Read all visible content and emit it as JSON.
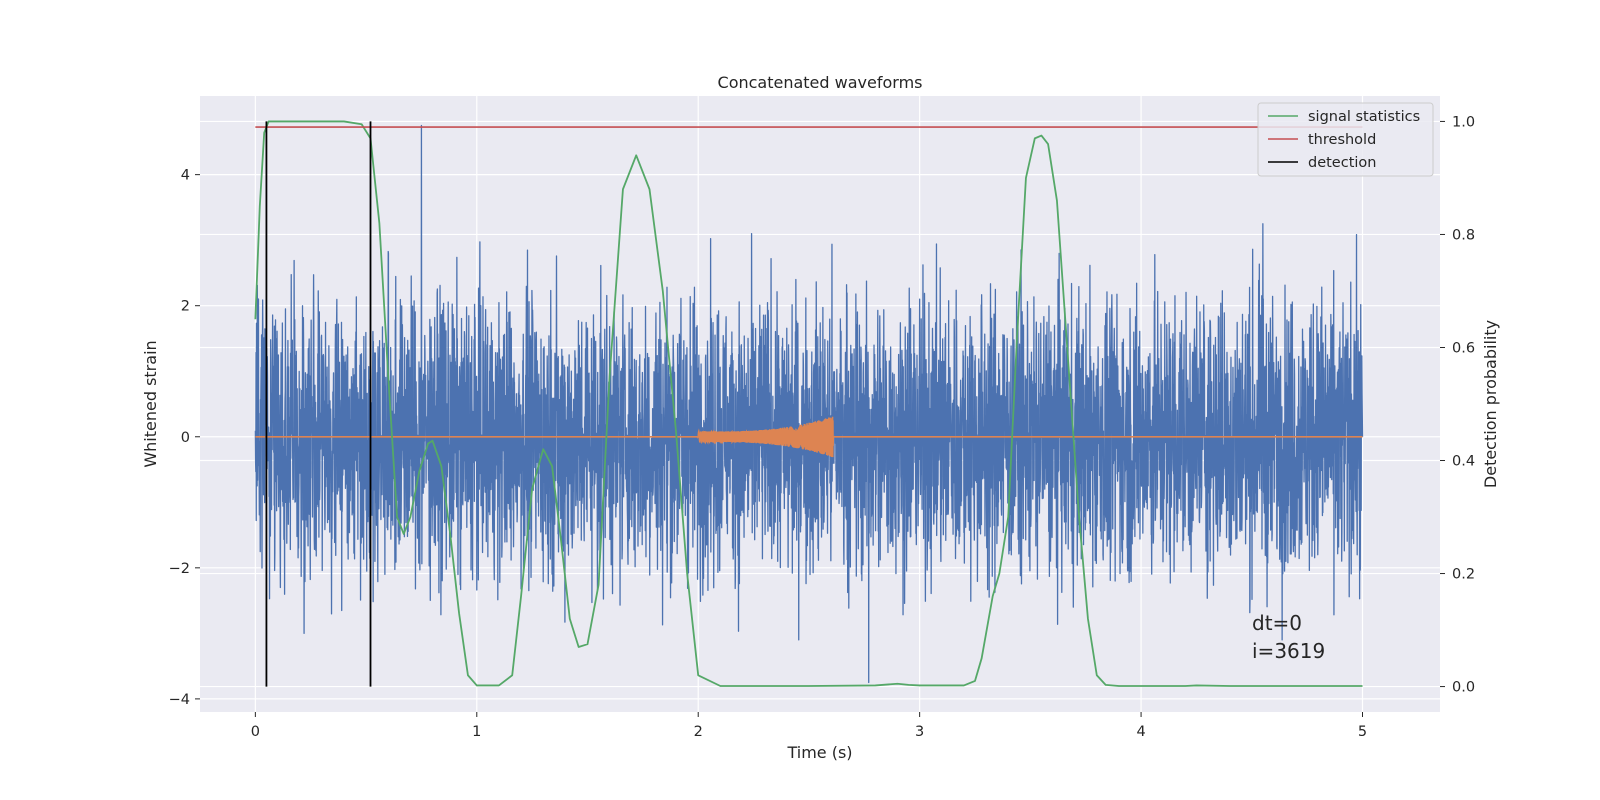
{
  "chart_data": {
    "type": "line",
    "title": "Concatenated waveforms",
    "xlabel": "Time (s)",
    "ylabel_left": "Whitened strain",
    "ylabel_right": "Detection probability",
    "xlim": [
      -0.25,
      5.35
    ],
    "ylim_left": [
      -4.2,
      5.2
    ],
    "ylim_right": [
      -0.045,
      1.045
    ],
    "x_ticks": [
      0,
      1,
      2,
      3,
      4,
      5
    ],
    "y_ticks_left": [
      -4,
      -2,
      0,
      2,
      4
    ],
    "y_ticks_right": [
      0.0,
      0.2,
      0.4,
      0.6,
      0.8,
      1.0
    ],
    "x_tick_labels": [
      "0",
      "1",
      "2",
      "3",
      "4",
      "5"
    ],
    "y_tick_labels_left": [
      "−4",
      "−2",
      "0",
      "2",
      "4"
    ],
    "y_tick_labels_right": [
      "0.0",
      "0.2",
      "0.4",
      "0.6",
      "0.8",
      "1.0"
    ],
    "grid": true,
    "legend_position": "top-right",
    "colors": {
      "background": "#eaeaf2",
      "noise": "#4c72b0",
      "template": "#dd8452",
      "signal_statistics": "#55a868",
      "threshold": "#c44e52",
      "detection": "#000000"
    },
    "series": [
      {
        "name": "signal statistics",
        "axis": "right",
        "x": [
          0.0,
          0.02,
          0.04,
          0.06,
          0.08,
          0.1,
          0.2,
          0.3,
          0.4,
          0.48,
          0.52,
          0.56,
          0.6,
          0.64,
          0.67,
          0.7,
          0.74,
          0.78,
          0.8,
          0.84,
          0.88,
          0.92,
          0.96,
          1.0,
          1.1,
          1.16,
          1.2,
          1.25,
          1.3,
          1.34,
          1.38,
          1.42,
          1.46,
          1.5,
          1.55,
          1.6,
          1.66,
          1.72,
          1.78,
          1.84,
          1.9,
          1.95,
          2.0,
          2.1,
          2.5,
          2.8,
          2.9,
          2.95,
          3.0,
          3.2,
          3.25,
          3.28,
          3.33,
          3.36,
          3.4,
          3.44,
          3.48,
          3.52,
          3.55,
          3.58,
          3.62,
          3.67,
          3.72,
          3.76,
          3.8,
          3.84,
          3.9,
          4.2,
          4.25,
          4.4,
          5.0
        ],
        "y": [
          0.65,
          0.85,
          0.98,
          1.0,
          1.0,
          1.0,
          1.0,
          1.0,
          1.0,
          0.995,
          0.97,
          0.82,
          0.55,
          0.3,
          0.27,
          0.3,
          0.38,
          0.43,
          0.435,
          0.39,
          0.27,
          0.13,
          0.02,
          0.002,
          0.002,
          0.02,
          0.16,
          0.35,
          0.42,
          0.39,
          0.26,
          0.12,
          0.07,
          0.075,
          0.18,
          0.55,
          0.88,
          0.94,
          0.88,
          0.7,
          0.45,
          0.2,
          0.02,
          0.001,
          0.001,
          0.002,
          0.005,
          0.003,
          0.002,
          0.002,
          0.01,
          0.05,
          0.16,
          0.2,
          0.3,
          0.62,
          0.9,
          0.97,
          0.975,
          0.96,
          0.86,
          0.58,
          0.3,
          0.12,
          0.02,
          0.003,
          0.001,
          0.001,
          0.002,
          0.001,
          0.001
        ]
      },
      {
        "name": "threshold",
        "axis": "right",
        "x": [
          0.0,
          5.0
        ],
        "y": [
          0.99,
          0.99
        ]
      },
      {
        "name": "detection",
        "axis": "right",
        "x_positions": [
          0.05,
          0.52
        ],
        "y_range": [
          0.0,
          1.0
        ]
      }
    ],
    "noise_trace": {
      "axis": "left",
      "x_range": [
        0.0,
        5.0
      ],
      "approx_amplitude": 2.5,
      "spikes": [
        {
          "x": 0.75,
          "y": 4.75
        },
        {
          "x": 2.77,
          "y": -3.75
        },
        {
          "x": 4.55,
          "y": 3.25
        },
        {
          "x": 0.22,
          "y": -3.0
        }
      ]
    },
    "template_trace": {
      "axis": "left",
      "x_range": [
        0.0,
        5.0
      ],
      "chirp_x_range": [
        2.0,
        2.61
      ],
      "chirp_peak_amplitude": 0.32
    },
    "annotation": [
      "dt=0",
      "i=3619"
    ]
  }
}
